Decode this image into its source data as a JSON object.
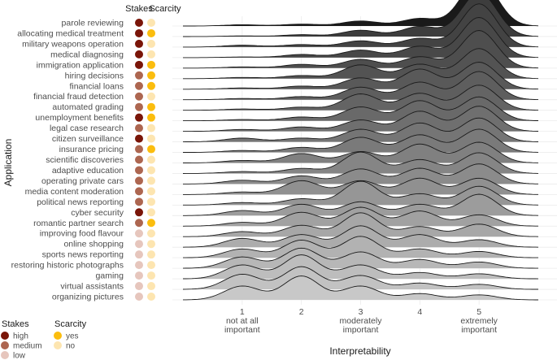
{
  "chart_data": {
    "type": "ridgeline",
    "title": "",
    "xlabel": "Interpretability",
    "ylabel": "Application",
    "xlim": [
      0.0,
      6.0
    ],
    "x_ticks": [
      {
        "value": 1,
        "label": [
          "1",
          "not at all",
          "important"
        ]
      },
      {
        "value": 2,
        "label": [
          "2"
        ]
      },
      {
        "value": 3,
        "label": [
          "3",
          "moderately",
          "important"
        ]
      },
      {
        "value": 4,
        "label": [
          "4"
        ]
      },
      {
        "value": 5,
        "label": [
          "5",
          "extremely",
          "important"
        ]
      }
    ],
    "grid": true,
    "column_headers": {
      "stakes": "Stakes",
      "scarcity": "Scarcity"
    },
    "rating_levels": [
      1,
      2,
      3,
      4,
      5
    ],
    "rows": [
      {
        "application": "parole reviewing",
        "stakes": "high",
        "scarcity": "no",
        "dist": [
          0.02,
          0.03,
          0.08,
          0.12,
          0.75
        ]
      },
      {
        "application": "allocating medical treatment",
        "stakes": "high",
        "scarcity": "yes",
        "dist": [
          0.01,
          0.03,
          0.1,
          0.16,
          0.7
        ]
      },
      {
        "application": "military weapons operation",
        "stakes": "high",
        "scarcity": "no",
        "dist": [
          0.03,
          0.04,
          0.1,
          0.14,
          0.69
        ]
      },
      {
        "application": "medical diagnosing",
        "stakes": "high",
        "scarcity": "no",
        "dist": [
          0.01,
          0.05,
          0.12,
          0.18,
          0.64
        ]
      },
      {
        "application": "immigration application",
        "stakes": "high",
        "scarcity": "yes",
        "dist": [
          0.02,
          0.06,
          0.14,
          0.18,
          0.6
        ]
      },
      {
        "application": "hiring decisions",
        "stakes": "medium",
        "scarcity": "yes",
        "dist": [
          0.02,
          0.05,
          0.22,
          0.23,
          0.48
        ]
      },
      {
        "application": "financial loans",
        "stakes": "medium",
        "scarcity": "yes",
        "dist": [
          0.02,
          0.05,
          0.18,
          0.32,
          0.43
        ]
      },
      {
        "application": "financial fraud detection",
        "stakes": "medium",
        "scarcity": "no",
        "dist": [
          0.02,
          0.05,
          0.2,
          0.28,
          0.45
        ]
      },
      {
        "application": "automated grading",
        "stakes": "medium",
        "scarcity": "yes",
        "dist": [
          0.02,
          0.05,
          0.26,
          0.27,
          0.4
        ]
      },
      {
        "application": "unemployment benefits",
        "stakes": "high",
        "scarcity": "yes",
        "dist": [
          0.02,
          0.06,
          0.22,
          0.32,
          0.38
        ]
      },
      {
        "application": "legal case research",
        "stakes": "medium",
        "scarcity": "no",
        "dist": [
          0.03,
          0.07,
          0.18,
          0.32,
          0.4
        ]
      },
      {
        "application": "citizen surveillance",
        "stakes": "high",
        "scarcity": "no",
        "dist": [
          0.06,
          0.06,
          0.2,
          0.3,
          0.38
        ]
      },
      {
        "application": "insurance pricing",
        "stakes": "medium",
        "scarcity": "yes",
        "dist": [
          0.03,
          0.08,
          0.24,
          0.28,
          0.37
        ]
      },
      {
        "application": "scientific discoveries",
        "stakes": "medium",
        "scarcity": "no",
        "dist": [
          0.04,
          0.15,
          0.18,
          0.3,
          0.33
        ]
      },
      {
        "application": "adaptive education",
        "stakes": "medium",
        "scarcity": "no",
        "dist": [
          0.03,
          0.08,
          0.34,
          0.22,
          0.33
        ]
      },
      {
        "application": "operating private cars",
        "stakes": "medium",
        "scarcity": "no",
        "dist": [
          0.06,
          0.13,
          0.24,
          0.25,
          0.32
        ]
      },
      {
        "application": "media content moderation",
        "stakes": "medium",
        "scarcity": "no",
        "dist": [
          0.04,
          0.22,
          0.22,
          0.26,
          0.26
        ]
      },
      {
        "application": "political news reporting",
        "stakes": "medium",
        "scarcity": "no",
        "dist": [
          0.04,
          0.1,
          0.38,
          0.18,
          0.3
        ]
      },
      {
        "application": "cyber security",
        "stakes": "high",
        "scarcity": "no",
        "dist": [
          0.08,
          0.18,
          0.22,
          0.18,
          0.34
        ]
      },
      {
        "application": "romantic partner search",
        "stakes": "medium",
        "scarcity": "yes",
        "dist": [
          0.06,
          0.22,
          0.3,
          0.24,
          0.18
        ]
      },
      {
        "application": "improving food flavour",
        "stakes": "low",
        "scarcity": "no",
        "dist": [
          0.08,
          0.18,
          0.38,
          0.16,
          0.2
        ]
      },
      {
        "application": "online shopping",
        "stakes": "low",
        "scarcity": "no",
        "dist": [
          0.14,
          0.2,
          0.34,
          0.2,
          0.12
        ]
      },
      {
        "application": "sports news reporting",
        "stakes": "low",
        "scarcity": "no",
        "dist": [
          0.14,
          0.28,
          0.34,
          0.14,
          0.1
        ]
      },
      {
        "application": "restoring historic photographs",
        "stakes": "low",
        "scarcity": "no",
        "dist": [
          0.18,
          0.32,
          0.26,
          0.14,
          0.1
        ]
      },
      {
        "application": "gaming",
        "stakes": "low",
        "scarcity": "no",
        "dist": [
          0.22,
          0.38,
          0.22,
          0.1,
          0.08
        ]
      },
      {
        "application": "virtual assistants",
        "stakes": "low",
        "scarcity": "no",
        "dist": [
          0.24,
          0.36,
          0.22,
          0.1,
          0.08
        ]
      },
      {
        "application": "organizing pictures",
        "stakes": "low",
        "scarcity": "no",
        "dist": [
          0.22,
          0.38,
          0.22,
          0.1,
          0.08
        ]
      }
    ],
    "fill_gradient": {
      "top": "#1a1a1a",
      "second": "#3d3d3d",
      "bottom": "#c8c8c8"
    },
    "stakes_colors": {
      "high": "#7a1508",
      "medium": "#ad6650",
      "low": "#e6c6bd"
    },
    "scarcity_colors": {
      "yes": "#fbbd0e",
      "no": "#fde5b0"
    },
    "legends": [
      {
        "title": "Stakes",
        "entries": [
          {
            "label": "high",
            "key": "high"
          },
          {
            "label": "medium",
            "key": "medium"
          },
          {
            "label": "low",
            "key": "low"
          }
        ]
      },
      {
        "title": "Scarcity",
        "entries": [
          {
            "label": "yes",
            "key": "yes"
          },
          {
            "label": "no",
            "key": "no"
          }
        ]
      }
    ]
  }
}
